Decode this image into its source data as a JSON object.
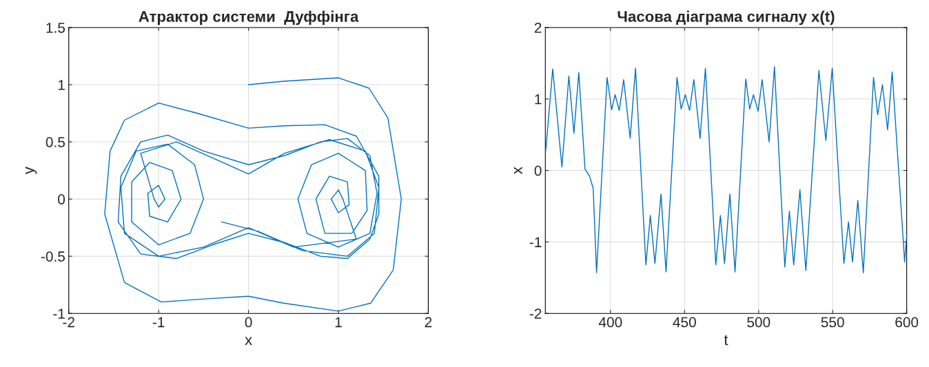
{
  "chart_data": [
    {
      "type": "line",
      "title": "Атрактор системи  Дуффінга",
      "xlabel": "x",
      "ylabel": "y",
      "xlim": [
        -2,
        2
      ],
      "ylim": [
        -1,
        1.5
      ],
      "xticks": [
        -2,
        -1,
        0,
        1,
        2
      ],
      "yticks": [
        -1,
        -0.5,
        0,
        0.5,
        1,
        1.5
      ],
      "grid": true,
      "series": [
        {
          "color": "#0072bd",
          "x": [
            0,
            0.39,
            1.0,
            1.34,
            1.55,
            1.7,
            1.61,
            1.36,
            1.0,
            0.39,
            0,
            -0.43,
            -0.97,
            -1.38,
            -1.6,
            -1.54,
            -1.38,
            -1.0,
            -0.57,
            0,
            0.39,
            0.85,
            1.2,
            1.45,
            1.45,
            1.35,
            1.1,
            0.8,
            0.4,
            0,
            -0.4,
            -0.8,
            -1.2,
            -1.45,
            -1.42,
            -1.2,
            -0.9,
            -0.5,
            0,
            0.4,
            0.8,
            1.1,
            1.35,
            1.43,
            1.35,
            1.0,
            0.65,
            0.55,
            0.7,
            1.0,
            1.3,
            1.32,
            1.15,
            0.85,
            0.75,
            0.9,
            1.1,
            1.12,
            1.0,
            0.92,
            1.0,
            1.05,
            1.2,
            0.5,
            0,
            -0.5,
            -1.0,
            -1.38,
            -1.42,
            -1.25,
            -0.9,
            -0.6,
            -0.5,
            -0.65,
            -1.0,
            -1.3,
            -1.3,
            -1.1,
            -0.85,
            -0.75,
            -0.9,
            -1.1,
            -1.12,
            -1.0,
            -0.93,
            -1.0,
            -1.05,
            -1.2,
            -0.8,
            -0.4,
            0,
            0.4,
            0.9,
            1.3,
            1.45,
            1.4,
            1.1,
            0.6,
            0.1,
            -0.3
          ],
          "values": [
            1.0,
            1.03,
            1.06,
            0.97,
            0.71,
            0.0,
            -0.62,
            -0.91,
            -0.98,
            -0.91,
            -0.85,
            -0.87,
            -0.9,
            -0.73,
            -0.13,
            0.42,
            0.69,
            0.84,
            0.75,
            0.62,
            0.64,
            0.65,
            0.55,
            0.2,
            -0.13,
            -0.35,
            -0.52,
            -0.5,
            -0.38,
            -0.3,
            -0.4,
            -0.52,
            -0.48,
            -0.2,
            0.2,
            0.5,
            0.56,
            0.42,
            0.3,
            0.38,
            0.5,
            0.53,
            0.38,
            0.05,
            -0.3,
            -0.42,
            -0.3,
            0,
            0.3,
            0.4,
            0.25,
            -0.1,
            -0.3,
            -0.3,
            0,
            0.2,
            0.15,
            -0.05,
            -0.12,
            0,
            0.08,
            0,
            -0.35,
            -0.42,
            -0.25,
            -0.42,
            -0.5,
            -0.3,
            0.1,
            0.42,
            0.48,
            0.3,
            0,
            -0.3,
            -0.4,
            -0.2,
            0.15,
            0.32,
            0.25,
            0,
            -0.2,
            -0.15,
            0.05,
            0.12,
            0,
            -0.07,
            0,
            0.4,
            0.5,
            0.36,
            0.22,
            0.4,
            0.52,
            0.42,
            0.1,
            -0.3,
            -0.5,
            -0.45,
            -0.28,
            -0.2
          ]
        }
      ]
    },
    {
      "type": "line",
      "title": "Часова діаграма сигналу x(t)",
      "xlabel": "t",
      "ylabel": "x",
      "xlim": [
        356,
        600
      ],
      "ylim": [
        -2,
        2
      ],
      "xticks": [
        400,
        450,
        500,
        550,
        600
      ],
      "yticks": [
        -2,
        -1,
        0,
        1,
        2
      ],
      "grid": true,
      "series": [
        {
          "color": "#0072bd",
          "x": [
            356.3,
            361.0,
            367.2,
            371.9,
            375.3,
            378.6,
            382.8,
            385.9,
            388.3,
            390.6,
            397.7,
            400.8,
            403.1,
            405.9,
            408.9,
            413.3,
            416.9,
            423.9,
            426.9,
            430.0,
            434.1,
            437.5,
            444.9,
            447.7,
            450.5,
            453.4,
            456.3,
            460.5,
            464.1,
            471.1,
            474.2,
            477.0,
            480.6,
            484.1,
            491.3,
            494.0,
            496.5,
            499.7,
            502.4,
            507.1,
            510.7,
            517.7,
            520.8,
            523.7,
            527.9,
            531.9,
            540.7,
            545.4,
            549.7,
            557.6,
            560.7,
            563.4,
            567.0,
            570.7,
            577.6,
            580.4,
            583.6,
            587.1,
            590.2,
            598.6,
            600
          ],
          "values": [
            0.28,
            1.42,
            0.05,
            1.32,
            0.52,
            1.37,
            0.02,
            -0.08,
            -0.25,
            -1.43,
            1.3,
            0.85,
            1.06,
            0.84,
            1.27,
            0.45,
            1.43,
            -1.32,
            -0.63,
            -1.3,
            -0.33,
            -1.42,
            1.3,
            0.86,
            1.06,
            0.84,
            1.27,
            0.45,
            1.43,
            -1.32,
            -0.63,
            -1.3,
            -0.33,
            -1.42,
            1.28,
            0.86,
            1.06,
            0.83,
            1.27,
            0.4,
            1.45,
            -1.35,
            -0.57,
            -1.32,
            -0.27,
            -1.4,
            1.4,
            0.42,
            1.43,
            -1.3,
            -0.72,
            -1.28,
            -0.42,
            -1.43,
            1.3,
            0.78,
            1.2,
            0.57,
            1.38,
            -1.28,
            -0.9
          ]
        }
      ]
    }
  ]
}
